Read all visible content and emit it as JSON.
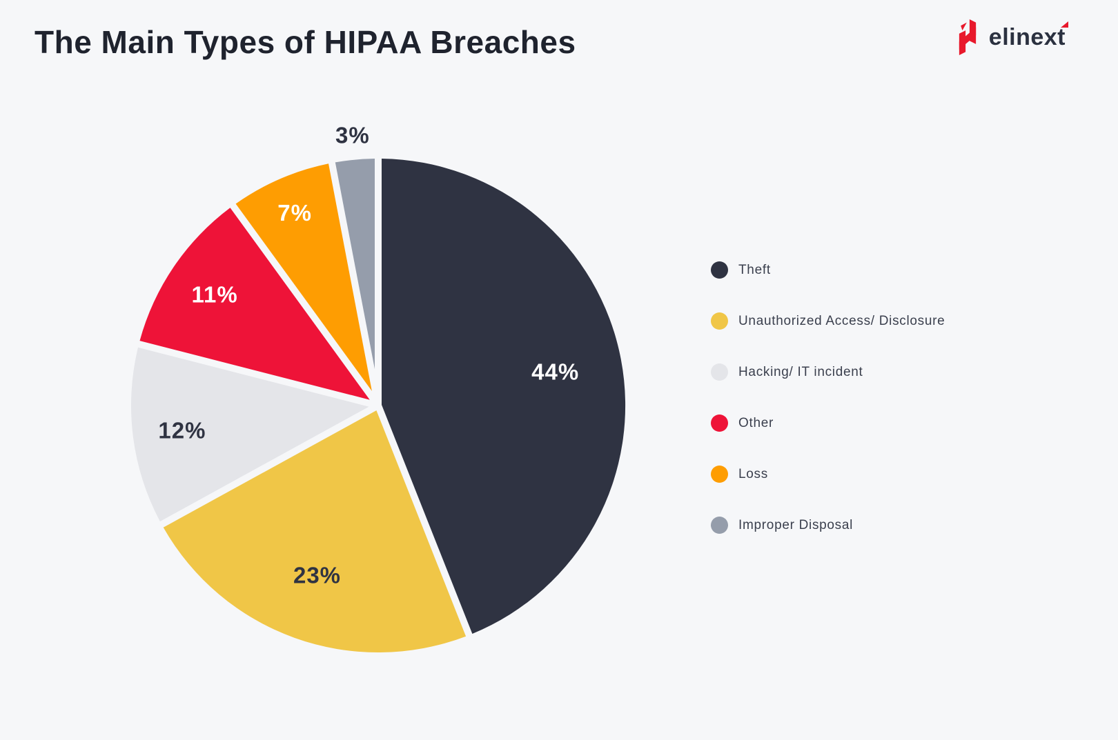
{
  "title": "The Main Types of HIPAA Breaches",
  "logo": {
    "text": "elinext",
    "icon": "elinext-red-n-mark",
    "accent_color": "#e8192c",
    "text_color": "#2b3140"
  },
  "colors": {
    "background": "#f6f7f9",
    "slice_gap": "#f6f7f9",
    "title_text": "#1f232e",
    "legend_text": "#3a3f4d"
  },
  "chart_data": {
    "type": "pie",
    "title": "The Main Types of HIPAA Breaches",
    "start_angle_deg": 0,
    "direction": "clockwise",
    "legend_position": "right",
    "slices": [
      {
        "label": "Theft",
        "value": 44,
        "color": "#2f3342",
        "label_text": "44%",
        "label_color": "#ffffff",
        "label_placement": "inside"
      },
      {
        "label": "Unauthorized Access/ Disclosure",
        "value": 23,
        "color": "#f0c647",
        "label_text": "23%",
        "label_color": "#2f3342",
        "label_placement": "inside"
      },
      {
        "label": "Hacking/ IT incident",
        "value": 12,
        "color": "#e4e5e9",
        "label_text": "12%",
        "label_color": "#2f3342",
        "label_placement": "inside"
      },
      {
        "label": "Other",
        "value": 11,
        "color": "#ee1338",
        "label_text": "11%",
        "label_color": "#ffffff",
        "label_placement": "inside"
      },
      {
        "label": "Loss",
        "value": 7,
        "color": "#fe9d02",
        "label_text": "7%",
        "label_color": "#ffffff",
        "label_placement": "inside"
      },
      {
        "label": "Improper Disposal",
        "value": 3,
        "color": "#959dab",
        "label_text": "3%",
        "label_color": "#2f3342",
        "label_placement": "outside"
      }
    ]
  }
}
